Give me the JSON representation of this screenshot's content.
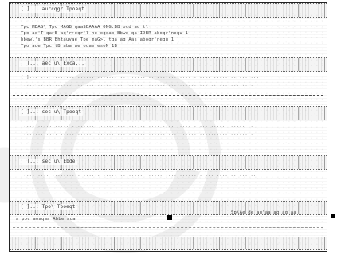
{
  "document": {
    "header_label": "[ ]... aurcqgr Tpoeqt",
    "sections": [
      "[ ]... aec u\\ Exca...",
      "[ ]... sec u\\ Tpoeqt",
      "[ ]... sec u\\ Ebde",
      "[ ]... Tpo\\ Tpoeqt"
    ],
    "meta_lines": [
      "Tpc MEAG\\  Tpc MAGB  qaaSBAAAA ONG.BB  ocd aq tl",
      "Tpo aq'T  qa>E aq'r>oqr'l       ne oqoao            Bbwe qa IDBR       aboqr'nequ 1",
      "      bbewl's BBR Bhtauyae     Tpe maG>l             tqa aq'Aas        aboqr'nequ 1",
      "                                                    Tpo aue      Tpc tB   aba ae oqae      esoN 1B"
    ],
    "body_lines": [
      "[ ]... ... .... .......... ....... ... ........ ....... .... ...... ..... .. .......",
      "    ..... ............ ... ......... ... ...... ........... ...... ... .. ....... ....",
      "    ..... ..... ..... ......... ..... ....... ....... .... ..... ..... ..... ...... ..",
      "    ........ .... ........... ....... ..... ........... .... ..... .......... ........",
      "    ..... .... .......... ...... ..... ........ ...... .... ........ ... ....... ......"
    ],
    "footer_left": "a poc aoaqaa Abbe aoa",
    "footer_right": "Sp\\Ae de aq'aa aq aq aa"
  }
}
